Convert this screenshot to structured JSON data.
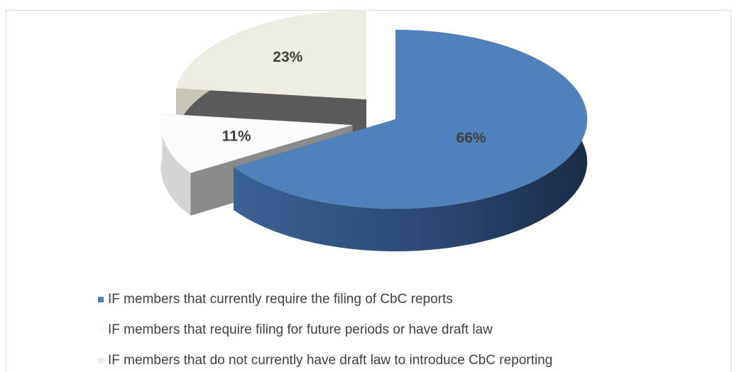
{
  "chart_data": {
    "type": "pie",
    "categories": [
      "IF members that currently require the filing of CbC reports",
      "IF members that require filing for future periods or have draft law",
      "IF members that do not currently have draft law to introduce CbC reporting"
    ],
    "values": [
      66,
      11,
      23
    ],
    "value_labels": [
      "66%",
      "11%",
      "23%"
    ],
    "colors": [
      "#4f81bd",
      "#fbfbfb",
      "#eeece1"
    ],
    "legend": "bottom"
  }
}
